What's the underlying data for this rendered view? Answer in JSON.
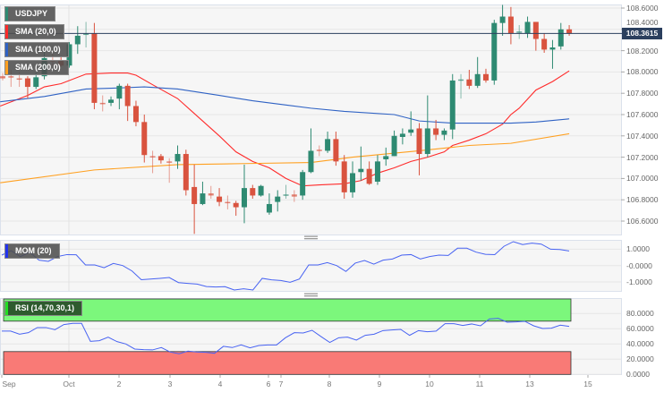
{
  "chart_data": {
    "type": "candlestick",
    "symbol": "USDJPY",
    "last_price": "108.3615",
    "price_axis": [
      "108.6000",
      "108.4000",
      "108.2000",
      "108.0000",
      "107.8000",
      "107.6000",
      "107.4000",
      "107.2000",
      "107.0000",
      "106.8000",
      "106.6000"
    ],
    "ylim": [
      106.6,
      108.6
    ],
    "x_ticks": [
      "Sep",
      "Oct",
      "2",
      "3",
      "4",
      "6",
      "7",
      "8",
      "9",
      "10",
      "11",
      "13",
      "15"
    ],
    "colors": {
      "up": "#2e8a72",
      "down": "#d9533f",
      "sma20": "#ff2a2a",
      "sma100": "#2f62c4",
      "sma200": "#ffa020",
      "osc": "#4863f2",
      "last": "#2b3f5e"
    },
    "candles_ohlc": [
      [
        107.96,
        107.99,
        107.92,
        107.94
      ],
      [
        107.96,
        108.02,
        107.86,
        107.95
      ],
      [
        107.94,
        108.0,
        107.86,
        107.93
      ],
      [
        107.94,
        107.96,
        107.75,
        107.86
      ],
      [
        107.86,
        107.99,
        107.84,
        107.95
      ],
      [
        107.96,
        108.19,
        107.93,
        108.13
      ],
      [
        108.11,
        108.17,
        108.06,
        108.1
      ],
      [
        108.11,
        108.15,
        108.05,
        108.06
      ],
      [
        108.06,
        108.28,
        108.04,
        108.26
      ],
      [
        108.26,
        108.43,
        108.17,
        108.34
      ],
      [
        108.35,
        108.47,
        108.23,
        108.36
      ],
      [
        108.36,
        108.46,
        107.65,
        107.71
      ],
      [
        107.71,
        107.78,
        107.63,
        107.7
      ],
      [
        107.71,
        107.77,
        107.68,
        107.74
      ],
      [
        107.75,
        107.89,
        107.65,
        107.87
      ],
      [
        107.87,
        107.89,
        107.54,
        107.68
      ],
      [
        107.68,
        107.73,
        107.49,
        107.53
      ],
      [
        107.53,
        107.6,
        107.15,
        107.22
      ],
      [
        107.21,
        107.26,
        107.05,
        107.2
      ],
      [
        107.21,
        107.23,
        107.14,
        107.17
      ],
      [
        107.16,
        107.19,
        106.96,
        107.15
      ],
      [
        107.16,
        107.31,
        107.09,
        107.23
      ],
      [
        107.23,
        107.27,
        106.84,
        106.89
      ],
      [
        106.92,
        107.13,
        106.48,
        106.76
      ],
      [
        106.76,
        106.97,
        106.75,
        106.86
      ],
      [
        106.86,
        106.93,
        106.81,
        106.84
      ],
      [
        106.83,
        106.91,
        106.74,
        106.78
      ],
      [
        106.78,
        106.84,
        106.71,
        106.77
      ],
      [
        106.77,
        106.79,
        106.65,
        106.73
      ],
      [
        106.73,
        107.13,
        106.58,
        106.91
      ],
      [
        106.91,
        106.94,
        106.81,
        106.84
      ],
      [
        106.84,
        106.94,
        106.83,
        106.93
      ],
      [
        106.68,
        106.86,
        106.66,
        106.76
      ],
      [
        106.78,
        106.89,
        106.69,
        106.83
      ],
      [
        106.84,
        106.94,
        106.81,
        106.85
      ],
      [
        106.85,
        106.89,
        106.78,
        106.83
      ],
      [
        106.84,
        107.08,
        106.8,
        107.06
      ],
      [
        107.06,
        107.47,
        107.05,
        107.26
      ],
      [
        107.27,
        107.31,
        107.21,
        107.26
      ],
      [
        107.26,
        107.44,
        107.24,
        107.37
      ],
      [
        107.37,
        107.44,
        107.12,
        107.16
      ],
      [
        107.16,
        107.22,
        106.81,
        106.87
      ],
      [
        106.87,
        107.16,
        106.82,
        107.05
      ],
      [
        107.06,
        107.3,
        106.98,
        107.09
      ],
      [
        107.09,
        107.16,
        106.94,
        106.95
      ],
      [
        106.97,
        107.22,
        106.94,
        107.16
      ],
      [
        107.18,
        107.29,
        107.12,
        107.21
      ],
      [
        107.21,
        107.45,
        107.21,
        107.4
      ],
      [
        107.39,
        107.47,
        107.32,
        107.42
      ],
      [
        107.43,
        107.63,
        107.4,
        107.46
      ],
      [
        107.47,
        107.52,
        107.03,
        107.23
      ],
      [
        107.23,
        107.78,
        107.2,
        107.47
      ],
      [
        107.47,
        107.55,
        107.36,
        107.41
      ],
      [
        107.41,
        107.47,
        107.36,
        107.45
      ],
      [
        107.46,
        107.98,
        107.37,
        107.92
      ],
      [
        107.92,
        107.98,
        107.75,
        107.93
      ],
      [
        107.93,
        108.02,
        107.84,
        107.87
      ],
      [
        107.87,
        108.14,
        107.85,
        107.98
      ],
      [
        107.98,
        108.03,
        107.9,
        107.92
      ],
      [
        107.92,
        108.49,
        107.88,
        108.46
      ],
      [
        108.46,
        108.63,
        108.34,
        108.52
      ],
      [
        108.52,
        108.61,
        108.26,
        108.36
      ],
      [
        108.37,
        108.44,
        108.31,
        108.38
      ],
      [
        108.36,
        108.52,
        108.32,
        108.47
      ],
      [
        108.47,
        108.47,
        108.2,
        108.31
      ],
      [
        108.31,
        108.36,
        108.18,
        108.21
      ],
      [
        108.21,
        108.3,
        108.03,
        108.23
      ],
      [
        108.24,
        108.46,
        108.21,
        108.4
      ],
      [
        108.4,
        108.44,
        108.34,
        108.36
      ]
    ],
    "sma": [
      {
        "name": "SMA (20,0)",
        "points": [
          [
            0.7,
            107.68
          ],
          [
            4,
            107.78
          ],
          [
            6,
            107.86
          ],
          [
            8,
            107.89
          ],
          [
            11,
            107.98
          ],
          [
            14,
            107.99
          ],
          [
            16,
            107.99
          ],
          [
            17,
            107.97
          ],
          [
            19,
            107.88
          ],
          [
            22,
            107.75
          ],
          [
            24,
            107.61
          ],
          [
            27,
            107.4
          ],
          [
            29,
            107.25
          ],
          [
            31,
            107.16
          ],
          [
            33,
            107.1
          ],
          [
            35,
            107.0
          ],
          [
            37,
            106.93
          ],
          [
            39,
            106.94
          ],
          [
            42,
            106.95
          ],
          [
            44,
            106.98
          ],
          [
            46,
            107.05
          ],
          [
            48,
            107.1
          ],
          [
            50,
            107.16
          ],
          [
            52,
            107.2
          ],
          [
            54,
            107.25
          ],
          [
            55,
            107.31
          ],
          [
            57,
            107.36
          ],
          [
            59,
            107.42
          ],
          [
            61,
            107.51
          ],
          [
            62,
            107.6
          ],
          [
            63,
            107.66
          ],
          [
            65,
            107.83
          ],
          [
            67,
            107.91
          ],
          [
            69,
            108.01
          ]
        ]
      },
      {
        "name": "SMA (100,0)",
        "points": [
          [
            0.7,
            107.72
          ],
          [
            6,
            107.77
          ],
          [
            11,
            107.84
          ],
          [
            15,
            107.85
          ],
          [
            18,
            107.86
          ],
          [
            22,
            107.84
          ],
          [
            27,
            107.78
          ],
          [
            31,
            107.73
          ],
          [
            35,
            107.69
          ],
          [
            38,
            107.66
          ],
          [
            42,
            107.63
          ],
          [
            48,
            107.6
          ],
          [
            51,
            107.54
          ],
          [
            55,
            107.52
          ],
          [
            60,
            107.52
          ],
          [
            62,
            107.52
          ],
          [
            65,
            107.53
          ],
          [
            69,
            107.56
          ]
        ]
      },
      {
        "name": "SMA (200,0)",
        "points": [
          [
            0.7,
            106.96
          ],
          [
            12,
            107.08
          ],
          [
            22,
            107.13
          ],
          [
            30,
            107.14
          ],
          [
            38,
            107.15
          ],
          [
            43,
            107.2
          ],
          [
            51,
            107.26
          ],
          [
            57,
            107.31
          ],
          [
            62,
            107.33
          ],
          [
            69,
            107.42
          ]
        ]
      }
    ],
    "mom": {
      "name": "MOM (20)",
      "axis": [
        "1.0000",
        "-0.0000",
        "-1.0000"
      ],
      "values": [
        0.64,
        0.91,
        0.55,
        0.82,
        0.33,
        0.26,
        0.55,
        0.67,
        0.66,
        0.04,
        0.04,
        -0.13,
        0.13,
        0,
        -0.33,
        -0.86,
        -0.82,
        -0.78,
        -0.73,
        -1.04,
        -1.09,
        -1.13,
        -1.28,
        -1.31,
        -1.29,
        -1.49,
        -1.42,
        -1.49,
        -0.78,
        -0.87,
        -0.91,
        -1.02,
        -0.82,
        0.04,
        0.04,
        0.18,
        0,
        -0.36,
        0.15,
        0.31,
        0.09,
        0.33,
        0.4,
        0.64,
        0.67,
        0.4,
        0.55,
        0.64,
        0.62,
        1.06,
        1.06,
        0.82,
        0.69,
        0.67,
        1.18,
        1.46,
        1.28,
        1.37,
        1.31,
        1.0,
        0.98,
        0.89
      ]
    },
    "rsi": {
      "name": "RSI (14,70,30,1)",
      "axis": [
        "80.0000",
        "60.0000",
        "40.0000",
        "20.0000",
        "0.0000"
      ],
      "overbought": 70,
      "oversold": 30,
      "values": [
        56.9,
        56.9,
        52.9,
        54.9,
        61.6,
        61.6,
        58.8,
        65.5,
        67.1,
        67.1,
        43.5,
        44.3,
        49.0,
        43.1,
        40.0,
        33.3,
        32.5,
        32.2,
        35.3,
        29.4,
        27.1,
        30.6,
        29.4,
        29.0,
        27.8,
        36.9,
        35.3,
        38.8,
        34.9,
        38.0,
        38.8,
        38.8,
        48.2,
        54.9,
        54.5,
        58.0,
        49.8,
        42.0,
        48.2,
        49.0,
        45.1,
        51.4,
        52.9,
        57.6,
        58.4,
        59.2,
        51.4,
        57.6,
        56.1,
        56.9,
        66.7,
        66.7,
        64.3,
        66.3,
        63.9,
        72.9,
        73.7,
        68.6,
        69.0,
        69.8,
        63.9,
        60.4,
        60.8,
        64.7,
        63.1
      ]
    }
  }
}
